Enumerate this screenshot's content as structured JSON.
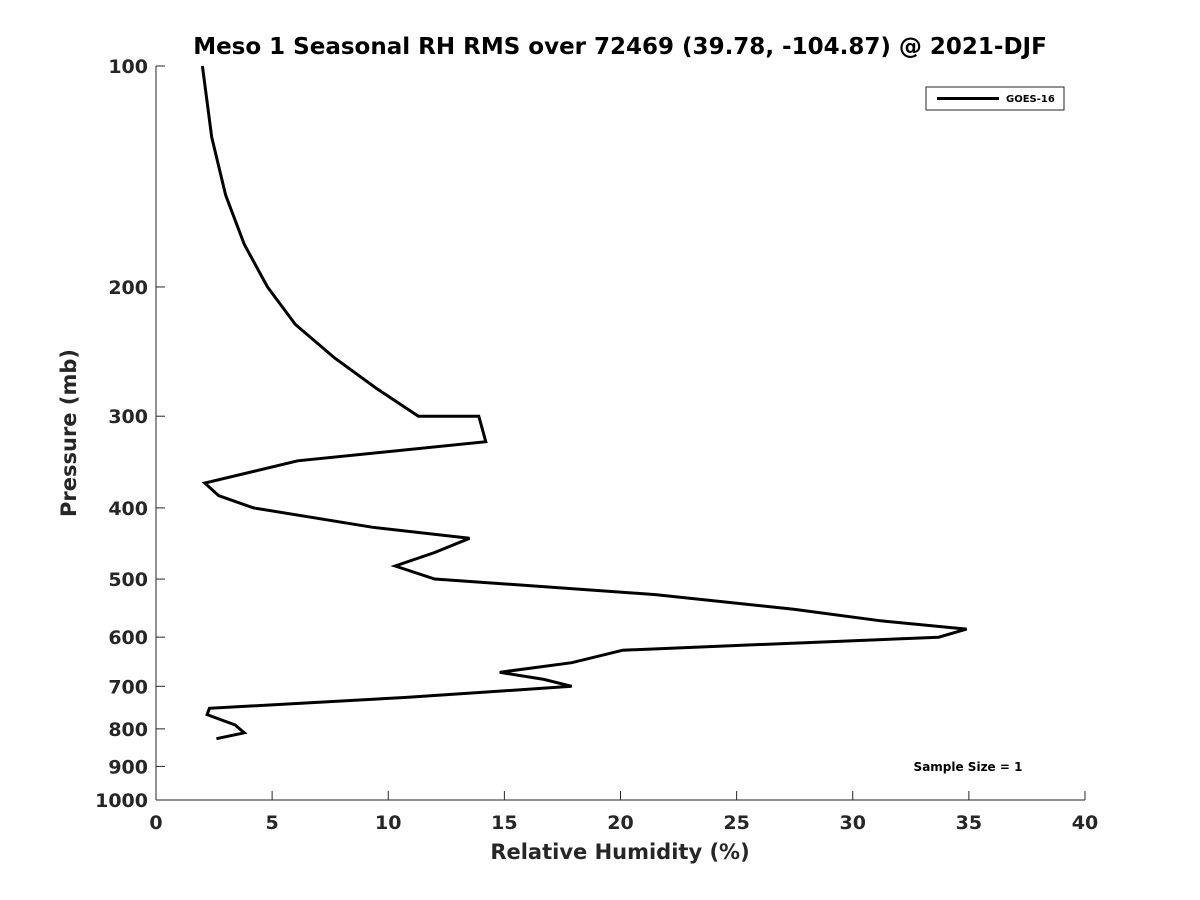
{
  "chart_data": {
    "type": "line",
    "title": "Meso 1 Seasonal RH RMS over 72469 (39.78, -104.87) @ 2021-DJF",
    "xlabel": "Relative Humidity (%)",
    "ylabel": "Pressure (mb)",
    "xlim": [
      0,
      40
    ],
    "ylim": [
      100,
      1000
    ],
    "y_scale": "log",
    "y_reversed": true,
    "x_ticks": [
      0,
      5,
      10,
      15,
      20,
      25,
      30,
      35,
      40
    ],
    "y_ticks": [
      100,
      200,
      300,
      400,
      500,
      600,
      700,
      800,
      900,
      1000
    ],
    "grid": false,
    "legend_position": "top-right",
    "annotation": "Sample Size = 1",
    "series": [
      {
        "name": "GOES-16",
        "color": "#000000",
        "points": [
          {
            "rh": 2.0,
            "p": 100
          },
          {
            "rh": 2.4,
            "p": 125
          },
          {
            "rh": 3.0,
            "p": 150
          },
          {
            "rh": 3.8,
            "p": 175
          },
          {
            "rh": 4.8,
            "p": 200
          },
          {
            "rh": 6.0,
            "p": 225
          },
          {
            "rh": 7.7,
            "p": 250
          },
          {
            "rh": 9.5,
            "p": 275
          },
          {
            "rh": 11.3,
            "p": 300
          },
          {
            "rh": 13.9,
            "p": 300
          },
          {
            "rh": 14.2,
            "p": 325
          },
          {
            "rh": 6.1,
            "p": 345
          },
          {
            "rh": 2.1,
            "p": 370
          },
          {
            "rh": 2.7,
            "p": 385
          },
          {
            "rh": 4.2,
            "p": 400
          },
          {
            "rh": 9.3,
            "p": 425
          },
          {
            "rh": 13.5,
            "p": 440
          },
          {
            "rh": 12.0,
            "p": 460
          },
          {
            "rh": 10.3,
            "p": 480
          },
          {
            "rh": 12.0,
            "p": 500
          },
          {
            "rh": 21.5,
            "p": 525
          },
          {
            "rh": 27.5,
            "p": 550
          },
          {
            "rh": 31.2,
            "p": 570
          },
          {
            "rh": 34.9,
            "p": 585
          },
          {
            "rh": 33.7,
            "p": 600
          },
          {
            "rh": 20.1,
            "p": 625
          },
          {
            "rh": 17.9,
            "p": 650
          },
          {
            "rh": 14.8,
            "p": 670
          },
          {
            "rh": 16.7,
            "p": 685
          },
          {
            "rh": 17.9,
            "p": 700
          },
          {
            "rh": 10.7,
            "p": 725
          },
          {
            "rh": 2.3,
            "p": 750
          },
          {
            "rh": 2.2,
            "p": 765
          },
          {
            "rh": 3.4,
            "p": 790
          },
          {
            "rh": 3.8,
            "p": 810
          },
          {
            "rh": 2.6,
            "p": 825
          }
        ]
      }
    ]
  }
}
